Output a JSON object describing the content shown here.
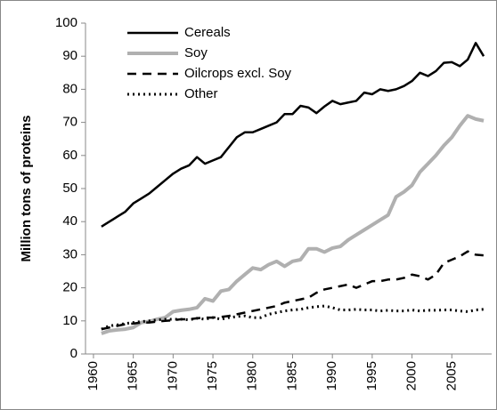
{
  "chart_data": {
    "type": "line",
    "y_label": "Million tons of proteins",
    "x": [
      1961,
      1962,
      1963,
      1964,
      1965,
      1966,
      1967,
      1968,
      1969,
      1970,
      1971,
      1972,
      1973,
      1974,
      1975,
      1976,
      1977,
      1978,
      1979,
      1980,
      1981,
      1982,
      1983,
      1984,
      1985,
      1986,
      1987,
      1988,
      1989,
      1990,
      1991,
      1992,
      1993,
      1994,
      1995,
      1996,
      1997,
      1998,
      1999,
      2000,
      2001,
      2002,
      2003,
      2004,
      2005,
      2006,
      2007,
      2008,
      2009
    ],
    "xlim": [
      1959,
      2010
    ],
    "xticks": [
      1960,
      1965,
      1970,
      1975,
      1980,
      1985,
      1990,
      1995,
      2000,
      2005
    ],
    "ylim": [
      0,
      100
    ],
    "yticks": [
      0,
      10,
      20,
      30,
      40,
      50,
      60,
      70,
      80,
      90,
      100
    ],
    "grid": false,
    "legend": "top-left",
    "series": [
      {
        "name": "Cereals",
        "color": "#000000",
        "width": 2.5,
        "dash": "solid",
        "values": [
          38.5,
          40,
          41.5,
          43,
          45.5,
          47,
          48.5,
          50.5,
          52.5,
          54.5,
          56,
          57,
          59.5,
          57.5,
          58.5,
          59.5,
          62.5,
          65.5,
          67,
          67,
          68,
          69,
          70,
          72.5,
          72.5,
          75,
          74.5,
          72.8,
          74.8,
          76.5,
          75.5,
          76,
          76.5,
          79,
          78.5,
          80,
          79.5,
          80,
          81,
          82.5,
          85,
          84,
          85.5,
          88,
          88.2,
          87,
          89,
          94,
          90
        ]
      },
      {
        "name": "Soy",
        "color": "#b0b0b0",
        "width": 4,
        "dash": "solid",
        "values": [
          6.2,
          7,
          7.3,
          7.5,
          8,
          9.5,
          9.8,
          10.5,
          11,
          12.8,
          13.2,
          13.5,
          14,
          16.7,
          16,
          19,
          19.5,
          22,
          24,
          26,
          25.5,
          27,
          28,
          26.5,
          28,
          28.5,
          31.8,
          31.8,
          30.8,
          32,
          32.5,
          34.5,
          36,
          37.5,
          39,
          40.5,
          42,
          47.5,
          49,
          51,
          55,
          57.5,
          60,
          63,
          65.5,
          69,
          72,
          71,
          70.5
        ]
      },
      {
        "name": "Oilcrops excl. Soy",
        "color": "#000000",
        "width": 2.5,
        "dash": "dashed",
        "values": [
          7.5,
          8,
          8.5,
          9,
          9.2,
          9.5,
          9.5,
          9.8,
          10,
          10.2,
          10.5,
          10.5,
          10.8,
          11,
          11,
          11.2,
          11.5,
          12,
          12.5,
          13,
          13.5,
          14,
          14.5,
          15.5,
          16,
          16.5,
          17,
          18.5,
          19.5,
          20,
          20.5,
          21,
          20,
          21,
          22,
          22,
          22.5,
          22.5,
          23,
          24,
          23.5,
          22.5,
          24,
          27.5,
          28.5,
          29.5,
          31,
          30,
          29.8
        ]
      },
      {
        "name": "Other",
        "color": "#000000",
        "width": 3,
        "dash": "dotted",
        "values": [
          7.5,
          8.5,
          8.8,
          9.2,
          9.5,
          9.8,
          10,
          10.3,
          10.5,
          10.5,
          10.5,
          10.3,
          10.8,
          10.5,
          11,
          10.5,
          11,
          11.3,
          11.5,
          11,
          11,
          12,
          12.5,
          13,
          13.3,
          13.5,
          14,
          14.3,
          14.5,
          14,
          13.3,
          13.3,
          13.5,
          13.3,
          13.3,
          13,
          13.2,
          13,
          13,
          13.3,
          13,
          13.2,
          13.2,
          13.3,
          13.3,
          13,
          12.8,
          13.3,
          13.5
        ]
      }
    ]
  }
}
